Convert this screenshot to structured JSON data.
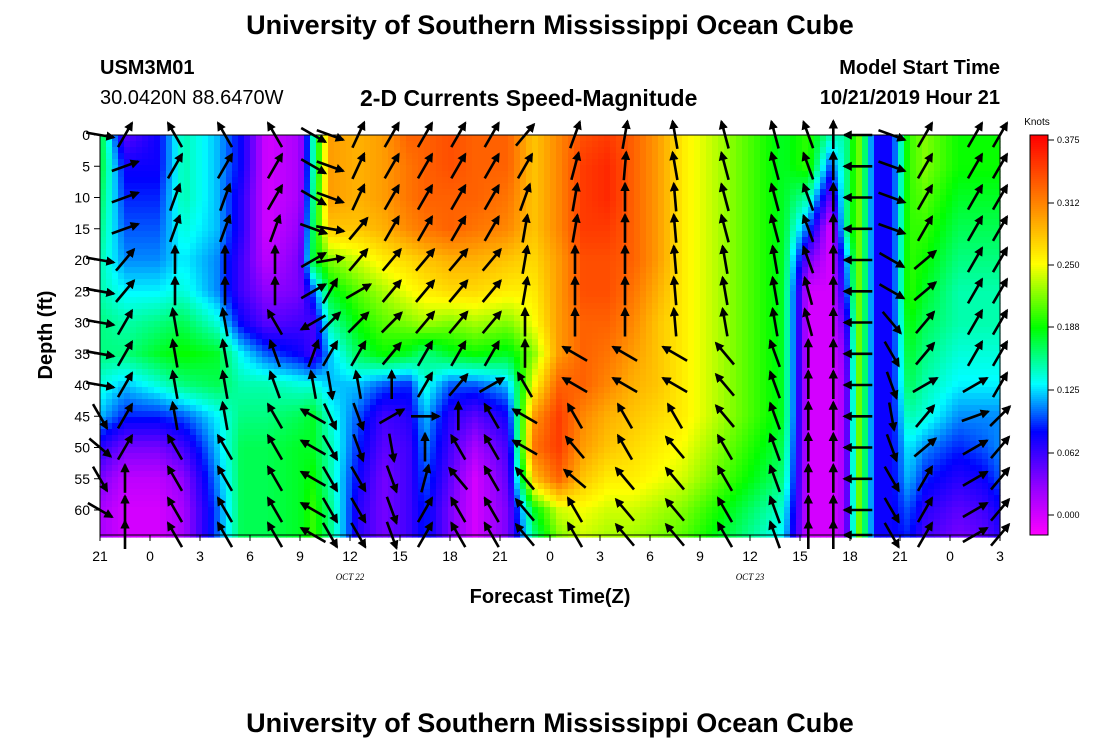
{
  "header": {
    "title": "University of Southern Mississippi Ocean Cube",
    "station_id": "USM3M01",
    "coords": "30.0420N 88.6470W",
    "subtitle": "2-D Currents Speed-Magnitude",
    "model_label": "Model Start Time",
    "model_time": "10/21/2019 Hour 21"
  },
  "footer": {
    "title": "University of Southern Mississippi Ocean Cube"
  },
  "chart_data": {
    "type": "heatmap",
    "title": "2-D Currents Speed-Magnitude",
    "xlabel": "Forecast Time(Z)",
    "ylabel": "Depth (ft)",
    "x_ticks": [
      "21",
      "0",
      "3",
      "6",
      "9",
      "12",
      "15",
      "18",
      "21",
      "0",
      "3",
      "6",
      "9",
      "12",
      "15",
      "18",
      "21",
      "0",
      "3"
    ],
    "date_labels": [
      {
        "text": "OCT 22",
        "at_tick": 5
      },
      {
        "text": "OCT 23",
        "at_tick": 13
      }
    ],
    "y_ticks": [
      "0",
      "5",
      "10",
      "15",
      "20",
      "25",
      "30",
      "35",
      "40",
      "45",
      "50",
      "55",
      "60"
    ],
    "ylim": [
      0,
      64
    ],
    "colorbar": {
      "unit": "Knots",
      "ticks": [
        "0.375",
        "0.312",
        "0.250",
        "0.188",
        "0.125",
        "0.062",
        "0.000"
      ],
      "range": [
        -0.02,
        0.38
      ]
    },
    "depths": [
      0,
      5,
      10,
      15,
      20,
      25,
      30,
      35,
      40,
      45,
      50,
      55,
      60,
      64
    ],
    "times": [
      21,
      22.5,
      0.5,
      2,
      4,
      5.5,
      7,
      9,
      9.8,
      10.8,
      12.5,
      14,
      15.5,
      16.5,
      18,
      19.5,
      21.5,
      23,
      0.5,
      2,
      3.5,
      5,
      6.5,
      8,
      9.5,
      11,
      12.5,
      14,
      15.5,
      16.8,
      17.7,
      18.5,
      19.5,
      20.5,
      21.5,
      22.5,
      0.5,
      2,
      3
    ],
    "speed_knots": [
      [
        0.18,
        0.05,
        0.08,
        0.15,
        0.12,
        0.08,
        0.0,
        0.02,
        0.15,
        0.3,
        0.29,
        0.3,
        0.33,
        0.33,
        0.34,
        0.33,
        0.33,
        0.28,
        0.31,
        0.34,
        0.35,
        0.33,
        0.3,
        0.26,
        0.24,
        0.22,
        0.2,
        0.18,
        0.2,
        0.15,
        0.15,
        0.22,
        0.08,
        0.08,
        0.2,
        0.22,
        0.19,
        0.19,
        0.19
      ],
      [
        0.18,
        0.08,
        0.08,
        0.15,
        0.12,
        0.08,
        0.0,
        0.02,
        0.15,
        0.3,
        0.29,
        0.3,
        0.32,
        0.33,
        0.34,
        0.33,
        0.33,
        0.28,
        0.31,
        0.35,
        0.36,
        0.33,
        0.3,
        0.26,
        0.24,
        0.22,
        0.2,
        0.18,
        0.2,
        0.1,
        0.15,
        0.22,
        0.08,
        0.08,
        0.2,
        0.22,
        0.19,
        0.19,
        0.19
      ],
      [
        0.17,
        0.09,
        0.09,
        0.15,
        0.12,
        0.07,
        0.0,
        0.02,
        0.16,
        0.3,
        0.29,
        0.3,
        0.32,
        0.33,
        0.33,
        0.33,
        0.32,
        0.28,
        0.31,
        0.35,
        0.36,
        0.33,
        0.3,
        0.26,
        0.24,
        0.22,
        0.2,
        0.18,
        0.15,
        0.05,
        0.15,
        0.22,
        0.08,
        0.08,
        0.2,
        0.21,
        0.18,
        0.18,
        0.18
      ],
      [
        0.16,
        0.1,
        0.1,
        0.14,
        0.12,
        0.07,
        0.0,
        0.03,
        0.17,
        0.28,
        0.28,
        0.29,
        0.31,
        0.32,
        0.33,
        0.32,
        0.31,
        0.28,
        0.31,
        0.35,
        0.35,
        0.33,
        0.3,
        0.26,
        0.24,
        0.22,
        0.2,
        0.18,
        0.1,
        0.0,
        0.15,
        0.22,
        0.08,
        0.08,
        0.2,
        0.2,
        0.17,
        0.17,
        0.17
      ],
      [
        0.15,
        0.11,
        0.11,
        0.13,
        0.11,
        0.06,
        0.01,
        0.04,
        0.18,
        0.22,
        0.24,
        0.26,
        0.27,
        0.28,
        0.29,
        0.29,
        0.28,
        0.27,
        0.3,
        0.34,
        0.34,
        0.33,
        0.3,
        0.26,
        0.24,
        0.22,
        0.2,
        0.18,
        0.04,
        0.0,
        0.1,
        0.22,
        0.08,
        0.08,
        0.2,
        0.19,
        0.16,
        0.16,
        0.16
      ],
      [
        0.15,
        0.13,
        0.13,
        0.14,
        0.11,
        0.06,
        0.03,
        0.04,
        0.1,
        0.18,
        0.21,
        0.23,
        0.25,
        0.26,
        0.27,
        0.27,
        0.26,
        0.26,
        0.3,
        0.34,
        0.34,
        0.32,
        0.29,
        0.26,
        0.24,
        0.22,
        0.2,
        0.18,
        0.0,
        0.0,
        0.08,
        0.22,
        0.08,
        0.08,
        0.2,
        0.18,
        0.15,
        0.15,
        0.15
      ],
      [
        0.16,
        0.15,
        0.16,
        0.17,
        0.14,
        0.08,
        0.05,
        0.06,
        0.06,
        0.15,
        0.19,
        0.21,
        0.22,
        0.23,
        0.22,
        0.23,
        0.22,
        0.25,
        0.3,
        0.33,
        0.33,
        0.31,
        0.28,
        0.26,
        0.24,
        0.22,
        0.2,
        0.18,
        0.0,
        0.0,
        0.05,
        0.22,
        0.08,
        0.08,
        0.19,
        0.17,
        0.15,
        0.15,
        0.15
      ],
      [
        0.16,
        0.16,
        0.18,
        0.19,
        0.18,
        0.13,
        0.1,
        0.08,
        0.06,
        0.12,
        0.17,
        0.19,
        0.18,
        0.16,
        0.18,
        0.19,
        0.18,
        0.22,
        0.3,
        0.33,
        0.32,
        0.3,
        0.28,
        0.26,
        0.24,
        0.22,
        0.2,
        0.18,
        0.0,
        0.0,
        0.03,
        0.22,
        0.08,
        0.08,
        0.18,
        0.16,
        0.14,
        0.14,
        0.14
      ],
      [
        0.14,
        0.12,
        0.14,
        0.16,
        0.17,
        0.15,
        0.15,
        0.14,
        0.14,
        0.12,
        0.12,
        0.1,
        0.09,
        0.14,
        0.1,
        0.1,
        0.12,
        0.25,
        0.33,
        0.33,
        0.31,
        0.29,
        0.28,
        0.26,
        0.24,
        0.22,
        0.2,
        0.18,
        0.0,
        0.0,
        0.02,
        0.22,
        0.08,
        0.08,
        0.17,
        0.15,
        0.13,
        0.13,
        0.13
      ],
      [
        0.12,
        0.09,
        0.09,
        0.1,
        0.13,
        0.16,
        0.16,
        0.17,
        0.18,
        0.14,
        0.1,
        0.06,
        0.07,
        0.12,
        0.07,
        0.05,
        0.08,
        0.3,
        0.35,
        0.31,
        0.29,
        0.28,
        0.27,
        0.26,
        0.24,
        0.22,
        0.2,
        0.18,
        0.0,
        0.0,
        0.02,
        0.22,
        0.08,
        0.08,
        0.15,
        0.14,
        0.11,
        0.11,
        0.11
      ],
      [
        0.07,
        0.04,
        0.04,
        0.06,
        0.12,
        0.17,
        0.17,
        0.18,
        0.18,
        0.15,
        0.09,
        0.05,
        0.06,
        0.11,
        0.06,
        0.02,
        0.06,
        0.32,
        0.35,
        0.3,
        0.28,
        0.27,
        0.26,
        0.25,
        0.23,
        0.21,
        0.19,
        0.17,
        0.0,
        0.0,
        0.02,
        0.22,
        0.08,
        0.08,
        0.13,
        0.11,
        0.09,
        0.1,
        0.11
      ],
      [
        0.04,
        0.01,
        0.01,
        0.03,
        0.11,
        0.17,
        0.17,
        0.18,
        0.19,
        0.15,
        0.08,
        0.04,
        0.06,
        0.1,
        0.05,
        0.0,
        0.05,
        0.28,
        0.33,
        0.28,
        0.26,
        0.26,
        0.25,
        0.24,
        0.22,
        0.2,
        0.18,
        0.16,
        0.0,
        0.0,
        0.02,
        0.22,
        0.08,
        0.08,
        0.12,
        0.09,
        0.07,
        0.08,
        0.1
      ],
      [
        0.02,
        0.0,
        0.0,
        0.02,
        0.1,
        0.17,
        0.17,
        0.18,
        0.2,
        0.16,
        0.07,
        0.04,
        0.06,
        0.09,
        0.04,
        0.0,
        0.04,
        0.18,
        0.24,
        0.25,
        0.24,
        0.24,
        0.23,
        0.22,
        0.2,
        0.18,
        0.16,
        0.14,
        0.0,
        0.0,
        0.02,
        0.22,
        0.08,
        0.08,
        0.1,
        0.07,
        0.05,
        0.06,
        0.08
      ],
      [
        0.02,
        0.0,
        0.0,
        0.02,
        0.1,
        0.17,
        0.17,
        0.18,
        0.2,
        0.16,
        0.07,
        0.04,
        0.06,
        0.09,
        0.04,
        0.0,
        0.04,
        0.16,
        0.22,
        0.24,
        0.23,
        0.23,
        0.22,
        0.21,
        0.19,
        0.17,
        0.15,
        0.13,
        0.0,
        0.0,
        0.02,
        0.22,
        0.08,
        0.08,
        0.09,
        0.06,
        0.04,
        0.05,
        0.07
      ]
    ],
    "vector_times": [
      21,
      22.5,
      1.5,
      4.5,
      7.5,
      9.8,
      10.8,
      12.5,
      14.5,
      16.5,
      18.5,
      20.5,
      22.5,
      1.5,
      4.5,
      7.5,
      10.5,
      13.5,
      15.5,
      17,
      18.5,
      20.5,
      22.5,
      1.5,
      3
    ],
    "vector_depths": [
      0,
      5,
      10,
      15,
      20,
      25,
      30,
      35,
      40,
      45,
      50,
      55,
      60,
      64
    ],
    "vector_dir_deg": [
      [
        100,
        30,
        330,
        330,
        330,
        120,
        110,
        25,
        30,
        30,
        30,
        30,
        40,
        20,
        10,
        350,
        345,
        345,
        340,
        0,
        270,
        110,
        30,
        30,
        30
      ],
      [
        100,
        70,
        30,
        30,
        30,
        120,
        110,
        25,
        30,
        30,
        30,
        30,
        30,
        15,
        5,
        350,
        345,
        345,
        340,
        0,
        270,
        110,
        30,
        30,
        30
      ],
      [
        100,
        70,
        20,
        20,
        30,
        120,
        110,
        25,
        30,
        30,
        30,
        30,
        20,
        10,
        0,
        355,
        345,
        345,
        340,
        0,
        270,
        110,
        30,
        30,
        30
      ],
      [
        100,
        70,
        20,
        20,
        20,
        110,
        100,
        40,
        30,
        30,
        30,
        30,
        10,
        10,
        0,
        355,
        345,
        345,
        340,
        0,
        270,
        110,
        30,
        30,
        30
      ],
      [
        100,
        40,
        0,
        0,
        0,
        60,
        80,
        40,
        40,
        40,
        40,
        40,
        10,
        0,
        0,
        355,
        350,
        350,
        340,
        0,
        270,
        120,
        50,
        30,
        30
      ],
      [
        100,
        40,
        0,
        0,
        0,
        60,
        30,
        60,
        40,
        40,
        40,
        40,
        10,
        0,
        0,
        355,
        350,
        350,
        345,
        0,
        270,
        120,
        50,
        30,
        30
      ],
      [
        100,
        30,
        350,
        350,
        330,
        240,
        45,
        45,
        45,
        40,
        40,
        40,
        0,
        0,
        0,
        355,
        350,
        350,
        345,
        0,
        270,
        140,
        40,
        30,
        30
      ],
      [
        100,
        30,
        350,
        350,
        340,
        20,
        30,
        30,
        40,
        30,
        30,
        30,
        0,
        300,
        300,
        300,
        320,
        340,
        0,
        0,
        270,
        150,
        40,
        30,
        30
      ],
      [
        100,
        30,
        350,
        350,
        340,
        350,
        170,
        350,
        0,
        30,
        40,
        60,
        330,
        300,
        300,
        300,
        320,
        340,
        0,
        0,
        270,
        160,
        60,
        60,
        30
      ],
      [
        150,
        30,
        350,
        350,
        330,
        300,
        155,
        160,
        60,
        90,
        0,
        330,
        300,
        330,
        330,
        330,
        320,
        340,
        0,
        0,
        270,
        170,
        40,
        70,
        45
      ],
      [
        130,
        30,
        330,
        330,
        330,
        300,
        150,
        160,
        170,
        0,
        330,
        330,
        300,
        320,
        330,
        320,
        330,
        340,
        0,
        0,
        270,
        160,
        50,
        60,
        40
      ],
      [
        150,
        0,
        330,
        330,
        330,
        300,
        150,
        150,
        160,
        15,
        320,
        330,
        320,
        310,
        320,
        320,
        330,
        340,
        0,
        0,
        270,
        150,
        30,
        60,
        40
      ],
      [
        120,
        0,
        330,
        330,
        330,
        300,
        150,
        150,
        160,
        30,
        330,
        330,
        320,
        330,
        320,
        320,
        330,
        340,
        0,
        0,
        270,
        150,
        30,
        60,
        40
      ],
      [
        100,
        0,
        330,
        330,
        330,
        300,
        150,
        150,
        160,
        30,
        330,
        330,
        320,
        330,
        320,
        320,
        330,
        340,
        0,
        0,
        270,
        150,
        30,
        60,
        40
      ]
    ],
    "vector_hidden": [
      [
        0,
        0,
        0,
        0,
        0,
        0,
        0,
        0,
        0,
        0,
        0,
        0,
        0,
        0,
        0,
        0,
        0,
        0,
        0,
        0,
        0,
        0,
        0,
        0,
        0
      ],
      [
        1,
        0,
        0,
        0,
        0,
        0,
        0,
        0,
        0,
        0,
        0,
        0,
        0,
        0,
        0,
        0,
        0,
        0,
        0,
        0,
        0,
        0,
        0,
        0,
        0
      ],
      [
        1,
        0,
        0,
        0,
        0,
        0,
        0,
        0,
        0,
        0,
        0,
        0,
        0,
        0,
        0,
        0,
        0,
        0,
        0,
        0,
        0,
        0,
        0,
        0,
        0
      ],
      [
        1,
        0,
        0,
        0,
        0,
        0,
        0,
        0,
        0,
        0,
        0,
        0,
        0,
        0,
        0,
        0,
        0,
        0,
        0,
        0,
        0,
        0,
        0,
        0,
        0
      ],
      [
        0,
        0,
        0,
        0,
        0,
        0,
        0,
        0,
        0,
        0,
        0,
        0,
        0,
        0,
        0,
        0,
        0,
        0,
        0,
        0,
        0,
        0,
        0,
        0,
        0
      ],
      [
        0,
        0,
        0,
        0,
        0,
        0,
        0,
        0,
        0,
        0,
        0,
        0,
        0,
        0,
        0,
        0,
        0,
        0,
        0,
        0,
        0,
        0,
        0,
        0,
        0
      ],
      [
        0,
        0,
        0,
        0,
        0,
        0,
        0,
        0,
        0,
        0,
        0,
        0,
        0,
        0,
        0,
        0,
        0,
        0,
        0,
        0,
        0,
        0,
        0,
        0,
        0
      ],
      [
        0,
        0,
        0,
        0,
        0,
        0,
        0,
        0,
        0,
        0,
        0,
        0,
        0,
        0,
        0,
        0,
        0,
        0,
        0,
        0,
        0,
        0,
        0,
        0,
        0
      ],
      [
        0,
        0,
        0,
        0,
        0,
        0,
        0,
        0,
        0,
        0,
        0,
        0,
        0,
        0,
        0,
        0,
        0,
        0,
        0,
        0,
        0,
        0,
        0,
        0,
        0
      ],
      [
        0,
        0,
        0,
        0,
        0,
        0,
        0,
        0,
        0,
        0,
        0,
        0,
        0,
        0,
        0,
        0,
        0,
        0,
        0,
        0,
        0,
        0,
        0,
        0,
        0
      ],
      [
        0,
        0,
        0,
        0,
        0,
        0,
        0,
        0,
        0,
        0,
        0,
        0,
        0,
        0,
        0,
        0,
        0,
        0,
        0,
        0,
        0,
        0,
        0,
        0,
        0
      ],
      [
        0,
        0,
        0,
        0,
        0,
        0,
        0,
        0,
        0,
        0,
        0,
        0,
        0,
        0,
        0,
        0,
        0,
        0,
        0,
        0,
        0,
        0,
        0,
        0,
        0
      ],
      [
        0,
        0,
        0,
        0,
        0,
        0,
        0,
        0,
        0,
        0,
        0,
        0,
        0,
        0,
        0,
        0,
        0,
        0,
        0,
        0,
        0,
        0,
        0,
        0,
        0
      ],
      [
        1,
        0,
        0,
        0,
        0,
        0,
        0,
        0,
        0,
        0,
        0,
        0,
        0,
        0,
        0,
        0,
        0,
        0,
        0,
        0,
        0,
        0,
        0,
        0,
        0
      ]
    ]
  }
}
